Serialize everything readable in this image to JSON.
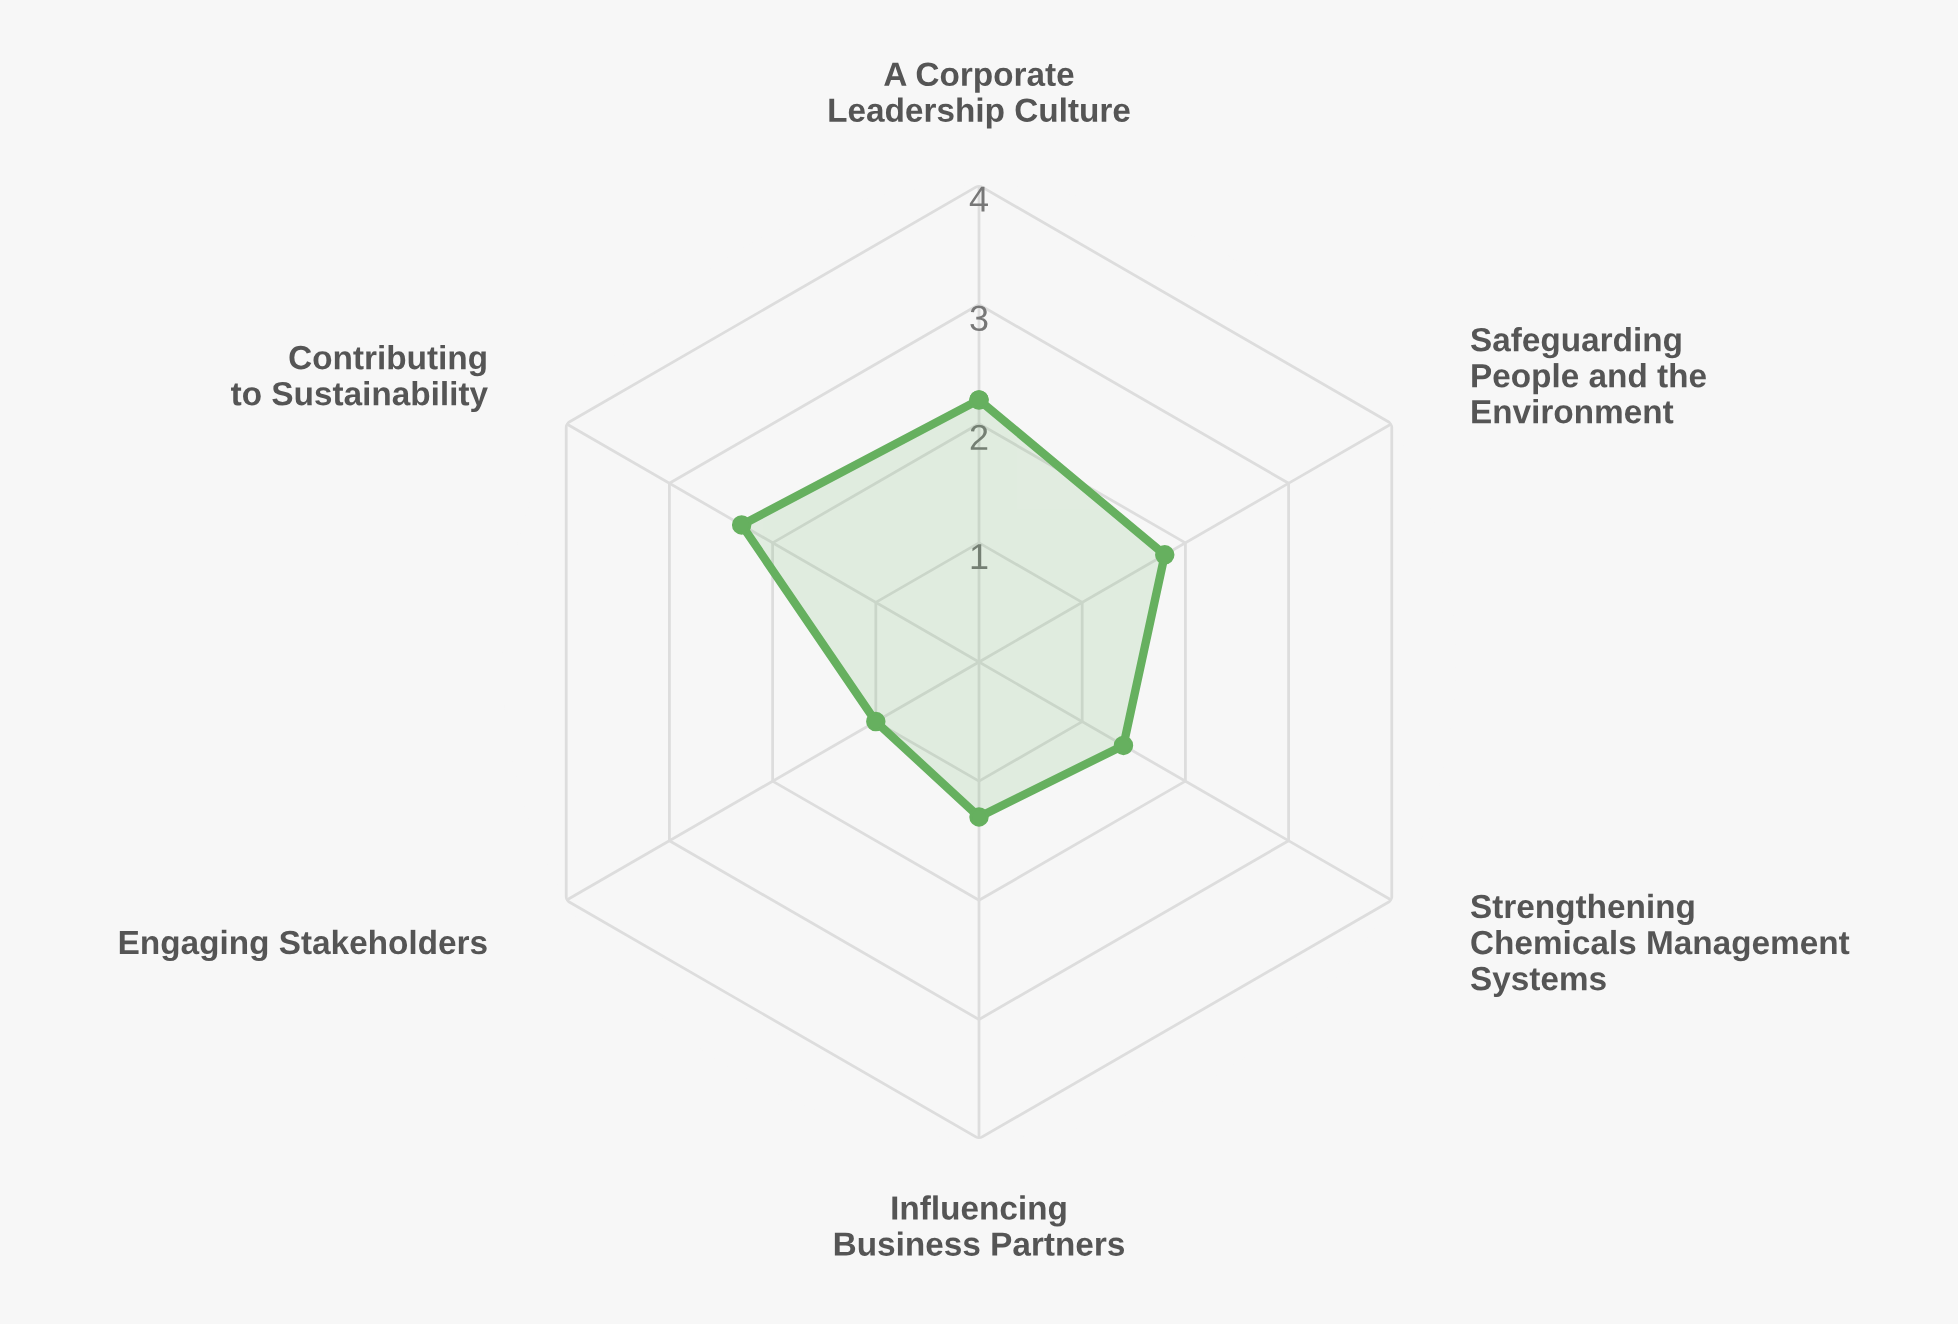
{
  "chart_data": {
    "type": "radar",
    "categories": [
      "A Corporate\nLeadership Culture",
      "Safeguarding\nPeople and the\nEnvironment",
      "Strengthening\nChemicals Management\nSystems",
      "Influencing\nBusiness Partners",
      "Engaging Stakeholders",
      "Contributing\nto Sustainability"
    ],
    "series": [
      {
        "color": "#66b05f",
        "values": [
          2.2,
          1.8,
          1.4,
          1.3,
          1.0,
          2.3
        ]
      }
    ],
    "ylim": [
      0,
      4
    ],
    "yticks": [
      1,
      2,
      3,
      4
    ],
    "grid": true,
    "marker": "circle",
    "line_style": "solid"
  }
}
